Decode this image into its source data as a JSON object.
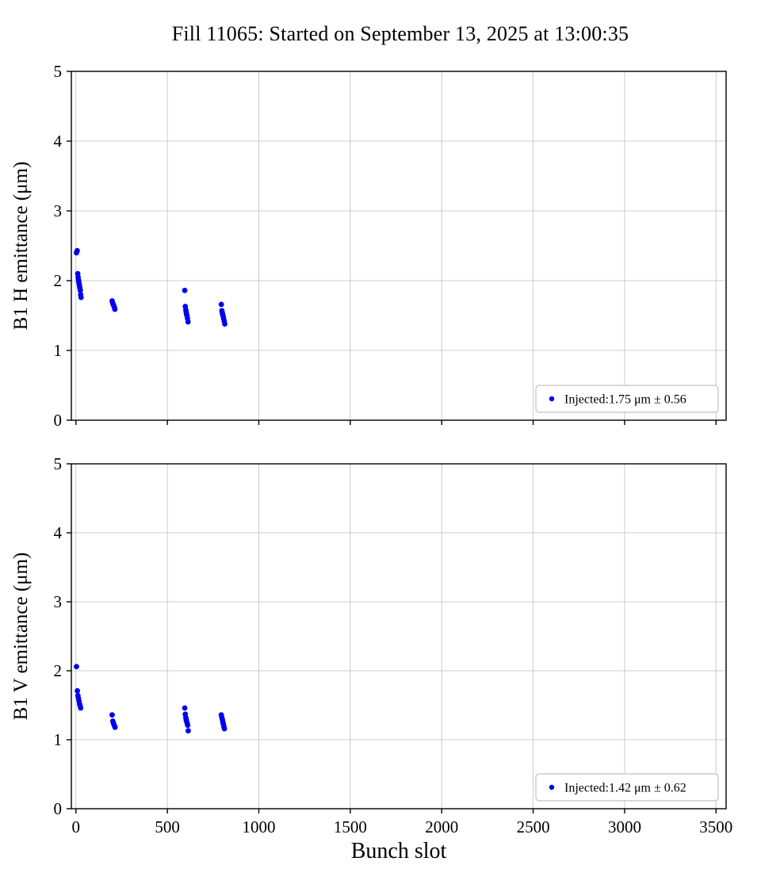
{
  "title": "Fill 11065: Started on September 13, 2025 at 13:00:35",
  "xlabel": "Bunch slot",
  "marker_color": "#0000ee",
  "grid_color": "#cccccc",
  "spine_color": "#000000",
  "legend_border_color": "#b3b3b3",
  "chart_data": [
    {
      "type": "scatter",
      "name": "b1-h-emittance",
      "ylabel": "B1 H emittance (μm)",
      "legend": "Injected:1.75 μm ± 0.56",
      "xlim": [
        -25,
        3555
      ],
      "ylim": [
        0,
        5
      ],
      "xticks": [
        0,
        500,
        1000,
        1500,
        2000,
        2500,
        3000,
        3500
      ],
      "yticks": [
        0,
        1,
        2,
        3,
        4,
        5
      ],
      "show_x_tick_labels": false,
      "points": [
        [
          3,
          2.4
        ],
        [
          7,
          2.43
        ],
        [
          10,
          2.1
        ],
        [
          12,
          2.05
        ],
        [
          14,
          2.01
        ],
        [
          16,
          1.98
        ],
        [
          18,
          1.95
        ],
        [
          20,
          1.92
        ],
        [
          22,
          1.89
        ],
        [
          24,
          1.86
        ],
        [
          26,
          1.8
        ],
        [
          28,
          1.76
        ],
        [
          198,
          1.71
        ],
        [
          201,
          1.68
        ],
        [
          204,
          1.66
        ],
        [
          207,
          1.64
        ],
        [
          210,
          1.62
        ],
        [
          213,
          1.59
        ],
        [
          595,
          1.86
        ],
        [
          598,
          1.63
        ],
        [
          601,
          1.58
        ],
        [
          603,
          1.55
        ],
        [
          605,
          1.52
        ],
        [
          607,
          1.5
        ],
        [
          610,
          1.46
        ],
        [
          613,
          1.41
        ],
        [
          795,
          1.66
        ],
        [
          798,
          1.57
        ],
        [
          800,
          1.54
        ],
        [
          802,
          1.52
        ],
        [
          804,
          1.5
        ],
        [
          806,
          1.48
        ],
        [
          808,
          1.45
        ],
        [
          811,
          1.42
        ],
        [
          814,
          1.38
        ]
      ]
    },
    {
      "type": "scatter",
      "name": "b1-v-emittance",
      "ylabel": "B1 V emittance (μm)",
      "legend": "Injected:1.42 μm ± 0.62",
      "xlim": [
        -25,
        3555
      ],
      "ylim": [
        0,
        5
      ],
      "xticks": [
        0,
        500,
        1000,
        1500,
        2000,
        2500,
        3000,
        3500
      ],
      "yticks": [
        0,
        1,
        2,
        3,
        4,
        5
      ],
      "show_x_tick_labels": true,
      "points": [
        [
          3,
          2.06
        ],
        [
          8,
          1.71
        ],
        [
          11,
          1.64
        ],
        [
          14,
          1.6
        ],
        [
          17,
          1.56
        ],
        [
          20,
          1.52
        ],
        [
          23,
          1.49
        ],
        [
          26,
          1.46
        ],
        [
          198,
          1.36
        ],
        [
          202,
          1.27
        ],
        [
          205,
          1.24
        ],
        [
          208,
          1.22
        ],
        [
          211,
          1.2
        ],
        [
          214,
          1.18
        ],
        [
          595,
          1.46
        ],
        [
          598,
          1.37
        ],
        [
          601,
          1.32
        ],
        [
          603,
          1.29
        ],
        [
          605,
          1.27
        ],
        [
          608,
          1.24
        ],
        [
          611,
          1.21
        ],
        [
          614,
          1.13
        ],
        [
          795,
          1.36
        ],
        [
          798,
          1.32
        ],
        [
          801,
          1.29
        ],
        [
          803,
          1.26
        ],
        [
          805,
          1.24
        ],
        [
          807,
          1.22
        ],
        [
          809,
          1.19
        ],
        [
          812,
          1.16
        ]
      ]
    }
  ]
}
